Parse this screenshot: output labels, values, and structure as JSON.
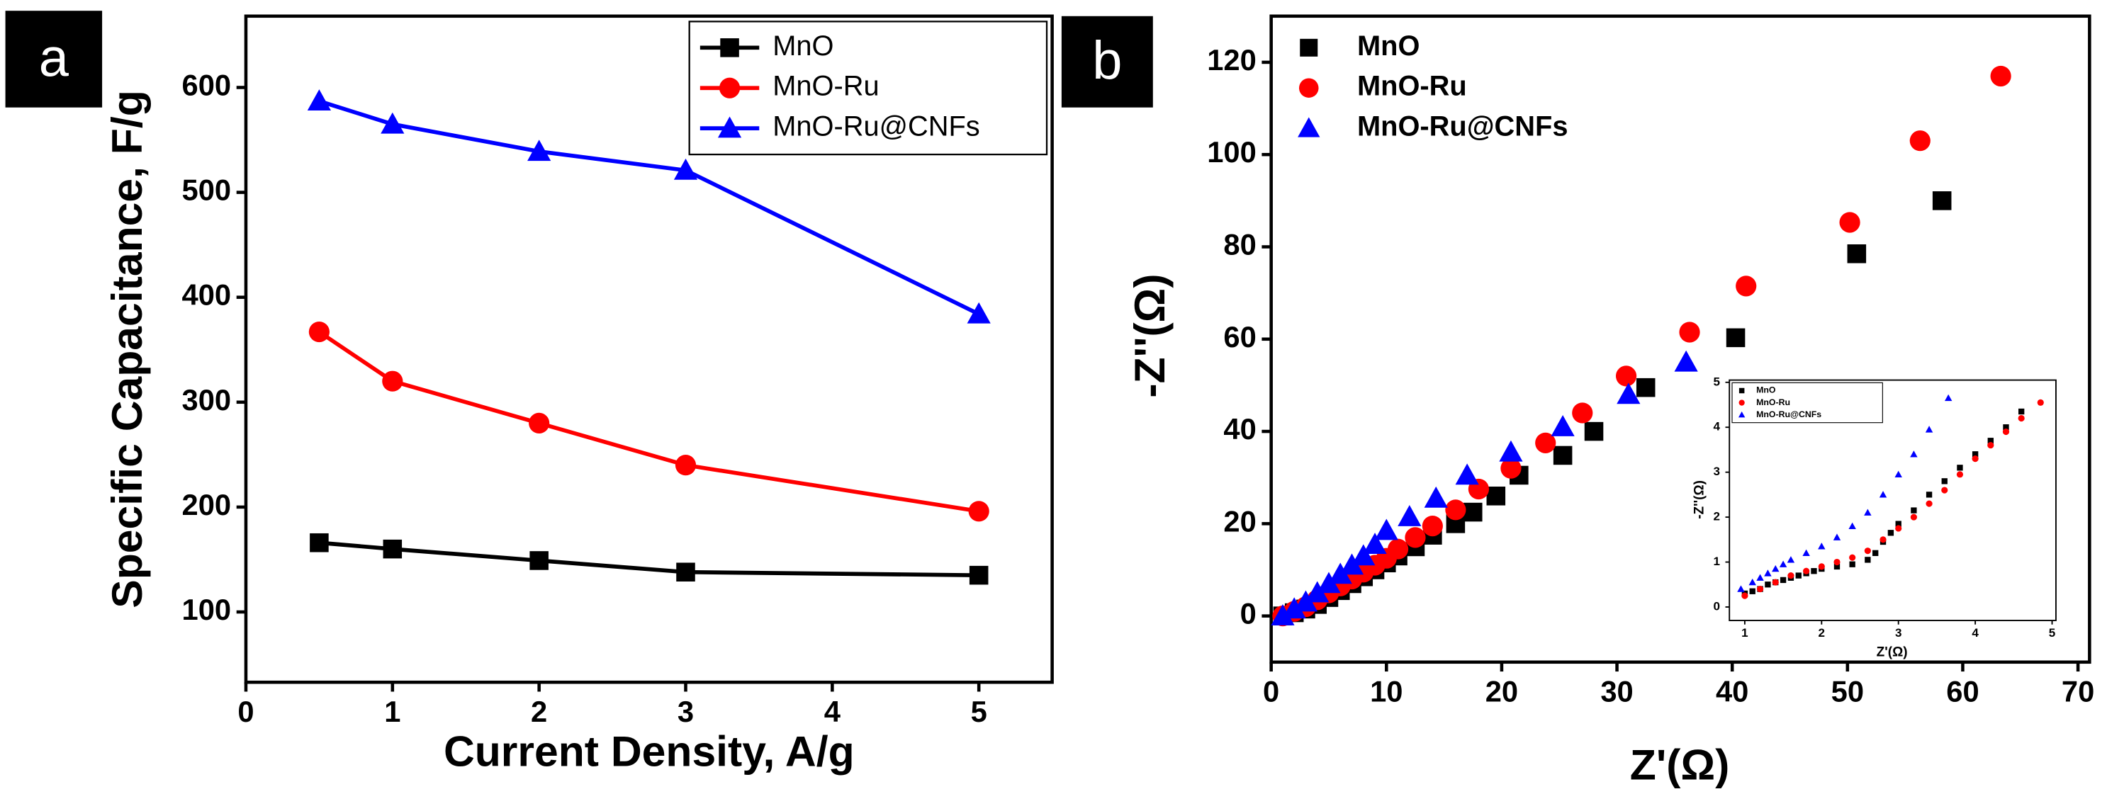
{
  "chart_data": [
    {
      "type": "line",
      "label": "a",
      "xlabel": "Current Density, A/g",
      "ylabel": "Specific Capacitance, F/g",
      "x": [
        0.5,
        1,
        2,
        3,
        5
      ],
      "series": [
        {
          "name": "MnO",
          "color": "#000000",
          "marker": "square",
          "values": [
            166,
            160,
            149,
            138,
            135
          ]
        },
        {
          "name": "MnO-Ru",
          "color": "#ff0000",
          "marker": "circle",
          "values": [
            367,
            320,
            280,
            240,
            196
          ]
        },
        {
          "name": "MnO-Ru@CNFs",
          "color": "#0000ff",
          "marker": "triangle",
          "values": [
            587,
            565,
            539,
            521,
            384
          ]
        }
      ],
      "xlim": [
        0,
        5.5
      ],
      "xticks": [
        0,
        1,
        2,
        3,
        4,
        5
      ],
      "ylim": [
        33,
        668
      ],
      "yticks": [
        100,
        200,
        300,
        400,
        500,
        600
      ],
      "legend": "upper right",
      "legend_frame": true
    },
    {
      "type": "scatter",
      "label": "b",
      "xlabel": "Z'(Ω)",
      "ylabel": "-Z''(Ω)",
      "series": [
        {
          "name": "MnO",
          "color": "#000000",
          "marker": "square",
          "x": [
            1,
            2,
            3,
            4,
            5,
            6,
            7,
            8,
            9,
            10,
            11,
            12.5,
            14,
            16,
            17.5,
            19.5,
            21.5,
            25.3,
            28,
            32.5,
            40.3,
            50.8,
            58.2
          ],
          "y": [
            0,
            0.7,
            1.5,
            2.5,
            4,
            5.5,
            7,
            8.5,
            10,
            11.5,
            13,
            15,
            17.5,
            20,
            22.5,
            26,
            30.5,
            34.8,
            40,
            49.5,
            60.3,
            78.5,
            90
          ]
        },
        {
          "name": "MnO-Ru",
          "color": "#ff0000",
          "marker": "circle",
          "x": [
            1,
            2,
            3,
            4,
            5,
            6,
            7,
            8,
            9,
            10,
            11,
            12.5,
            14,
            16,
            18,
            20.8,
            23.8,
            27,
            30.8,
            36.3,
            41.2,
            50.2,
            56.3,
            63.3
          ],
          "y": [
            0,
            1,
            2,
            3.5,
            5,
            6.5,
            8,
            9.5,
            11,
            12.5,
            14.5,
            17,
            19.5,
            23,
            27.5,
            32,
            37.5,
            44,
            52,
            61.5,
            71.5,
            85.3,
            103,
            117
          ]
        },
        {
          "name": "MnO-Ru@CNFs",
          "color": "#0000ff",
          "marker": "triangle",
          "x": [
            1,
            2,
            3,
            4,
            5,
            6,
            7,
            8,
            9,
            10,
            12,
            14.3,
            17,
            20.8,
            25.3,
            31,
            36
          ],
          "y": [
            0,
            1.5,
            3,
            5,
            7,
            9,
            11,
            13,
            15.5,
            18.5,
            21.5,
            25.5,
            30.5,
            35.5,
            41,
            48,
            55
          ]
        }
      ],
      "xlim": [
        0,
        71
      ],
      "xticks": [
        0,
        10,
        20,
        30,
        40,
        50,
        60,
        70
      ],
      "ylim": [
        -10,
        130
      ],
      "yticks": [
        0,
        20,
        40,
        60,
        80,
        100,
        120
      ],
      "legend": "upper left",
      "legend_frame": false
    },
    {
      "type": "scatter",
      "xlabel": "Z'(Ω)",
      "ylabel": "-Z''(Ω)",
      "series": [
        {
          "name": "MnO",
          "color": "#000000",
          "marker": "square",
          "x": [
            1,
            1.1,
            1.2,
            1.3,
            1.4,
            1.5,
            1.6,
            1.7,
            1.8,
            1.9,
            2.0,
            2.2,
            2.4,
            2.6,
            2.7,
            2.8,
            2.9,
            3.0,
            3.2,
            3.4,
            3.6,
            3.8,
            4.0,
            4.2,
            4.4,
            4.6
          ],
          "y": [
            0.3,
            0.35,
            0.4,
            0.5,
            0.55,
            0.6,
            0.65,
            0.7,
            0.75,
            0.8,
            0.85,
            0.9,
            0.95,
            1.05,
            1.2,
            1.45,
            1.65,
            1.85,
            2.15,
            2.5,
            2.8,
            3.1,
            3.4,
            3.7,
            4.0,
            4.35
          ]
        },
        {
          "name": "MnO-Ru",
          "color": "#ff0000",
          "marker": "circle",
          "x": [
            1,
            1.2,
            1.4,
            1.6,
            1.8,
            2.0,
            2.2,
            2.4,
            2.6,
            2.8,
            3.0,
            3.2,
            3.4,
            3.6,
            3.8,
            4.0,
            4.2,
            4.4,
            4.6,
            4.85
          ],
          "y": [
            0.25,
            0.4,
            0.55,
            0.7,
            0.8,
            0.9,
            1.0,
            1.1,
            1.25,
            1.5,
            1.75,
            2.0,
            2.3,
            2.6,
            2.95,
            3.3,
            3.6,
            3.9,
            4.2,
            4.55
          ]
        },
        {
          "name": "MnO-Ru@CNFs",
          "color": "#0000ff",
          "marker": "triangle",
          "x": [
            0.95,
            1.1,
            1.2,
            1.3,
            1.4,
            1.5,
            1.6,
            1.8,
            2.0,
            2.2,
            2.4,
            2.6,
            2.8,
            3.0,
            3.2,
            3.4,
            3.65
          ],
          "y": [
            0.4,
            0.55,
            0.65,
            0.75,
            0.85,
            0.95,
            1.05,
            1.2,
            1.35,
            1.55,
            1.8,
            2.1,
            2.5,
            2.95,
            3.4,
            3.95,
            4.65
          ]
        }
      ],
      "xlim": [
        0.8,
        5.05
      ],
      "xticks": [
        1,
        2,
        3,
        4,
        5
      ],
      "ylim": [
        -0.3,
        5.05
      ],
      "yticks": [
        0,
        1,
        2,
        3,
        4,
        5
      ],
      "legend": "upper left",
      "legend_frame": true
    }
  ]
}
